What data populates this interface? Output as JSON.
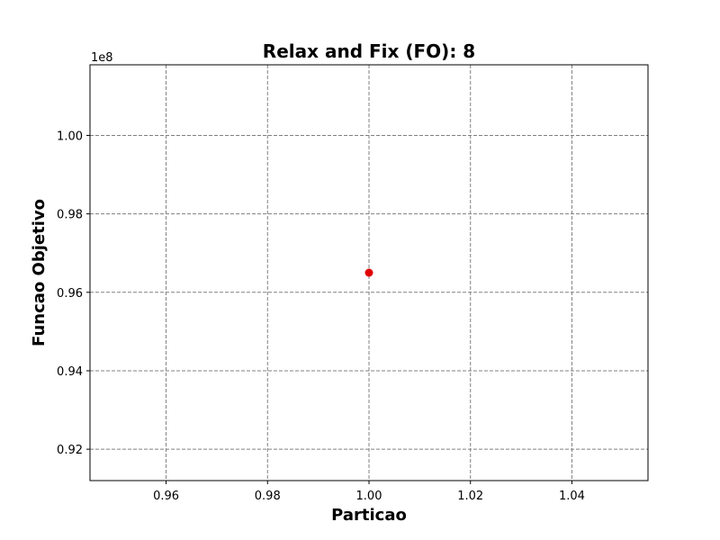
{
  "chart_data": {
    "type": "scatter",
    "title": "Relax and Fix (FO): 8",
    "xlabel": "Particao",
    "ylabel": "Funcao Objetivo",
    "y_offset_label": "1e8",
    "xlim": [
      0.945,
      1.055
    ],
    "ylim": [
      0.912,
      1.018
    ],
    "x_ticks": [
      0.96,
      0.98,
      1.0,
      1.02,
      1.04
    ],
    "x_tick_labels": [
      "0.96",
      "0.98",
      "1.00",
      "1.02",
      "1.04"
    ],
    "y_ticks": [
      0.92,
      0.94,
      0.96,
      0.98,
      1.0
    ],
    "y_tick_labels": [
      "0.92",
      "0.94",
      "0.96",
      "0.98",
      "1.00"
    ],
    "grid": true,
    "point_color": "#e00000",
    "series": [
      {
        "x": [
          1.0
        ],
        "y": [
          0.965
        ]
      }
    ]
  }
}
